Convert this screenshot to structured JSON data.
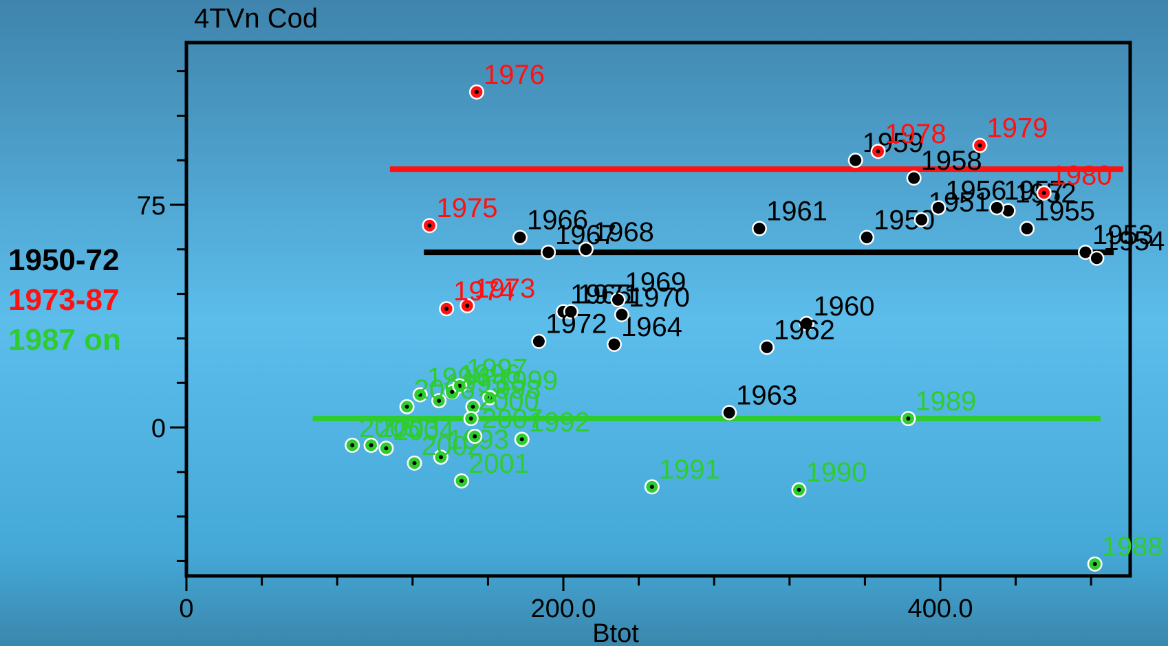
{
  "chart_data": {
    "type": "scatter",
    "title": "4TVn Cod",
    "xlabel": "Btot",
    "ylabel": "",
    "xlim": [
      0,
      500
    ],
    "ylim": [
      -45,
      135
    ],
    "x_tick_labels": [
      "0",
      "200.0",
      "400.0"
    ],
    "y_tick_labels": [
      "0",
      "75"
    ],
    "x_tick_values": [
      0,
      200,
      400
    ],
    "y_tick_values": [
      0,
      75
    ],
    "grid": false,
    "legend_position": "left",
    "series": [
      {
        "name": "1950-72",
        "color": "#000000",
        "mean_line": {
          "y": 59,
          "x_start": 126,
          "x_end": 492
        },
        "points": [
          {
            "year": "1950",
            "x": 361,
            "y": 64
          },
          {
            "year": "1951",
            "x": 390,
            "y": 70
          },
          {
            "year": "1952",
            "x": 436,
            "y": 73
          },
          {
            "year": "1953",
            "x": 477,
            "y": 59
          },
          {
            "year": "1954",
            "x": 483,
            "y": 57
          },
          {
            "year": "1955",
            "x": 446,
            "y": 67
          },
          {
            "year": "1956",
            "x": 399,
            "y": 74
          },
          {
            "year": "1957",
            "x": 430,
            "y": 74
          },
          {
            "year": "1958",
            "x": 386,
            "y": 84
          },
          {
            "year": "1959",
            "x": 355,
            "y": 90
          },
          {
            "year": "1960",
            "x": 329,
            "y": 35
          },
          {
            "year": "1961",
            "x": 304,
            "y": 67
          },
          {
            "year": "1962",
            "x": 308,
            "y": 27
          },
          {
            "year": "1963",
            "x": 288,
            "y": 5
          },
          {
            "year": "1964",
            "x": 227,
            "y": 28
          },
          {
            "year": "1965",
            "x": 200,
            "y": 39
          },
          {
            "year": "1966",
            "x": 177,
            "y": 64
          },
          {
            "year": "1967",
            "x": 192,
            "y": 59
          },
          {
            "year": "1968",
            "x": 212,
            "y": 60
          },
          {
            "year": "1969",
            "x": 229,
            "y": 43
          },
          {
            "year": "1970",
            "x": 231,
            "y": 38
          },
          {
            "year": "1971",
            "x": 204,
            "y": 39
          },
          {
            "year": "1972",
            "x": 187,
            "y": 29
          }
        ]
      },
      {
        "name": "1973-87",
        "color": "#ff1111",
        "mean_line": {
          "y": 87,
          "x_start": 108,
          "x_end": 497
        },
        "points": [
          {
            "year": "1973",
            "x": 149,
            "y": 41
          },
          {
            "year": "1974",
            "x": 138,
            "y": 40
          },
          {
            "year": "1975",
            "x": 129,
            "y": 68
          },
          {
            "year": "1976",
            "x": 154,
            "y": 113
          },
          {
            "year": "1978",
            "x": 367,
            "y": 93
          },
          {
            "year": "1979",
            "x": 421,
            "y": 95
          },
          {
            "year": "1980",
            "x": 455,
            "y": 79
          }
        ]
      },
      {
        "name": "1987 on",
        "color": "#2fcc2f",
        "mean_line": {
          "y": 3,
          "x_start": 67,
          "x_end": 485
        },
        "points": [
          {
            "year": "1988",
            "x": 482,
            "y": -46
          },
          {
            "year": "1989",
            "x": 383,
            "y": 3
          },
          {
            "year": "1990",
            "x": 325,
            "y": -21
          },
          {
            "year": "1991",
            "x": 247,
            "y": -20
          },
          {
            "year": "1992",
            "x": 178,
            "y": -4
          },
          {
            "year": "1993",
            "x": 135,
            "y": -10
          },
          {
            "year": "1994",
            "x": 124,
            "y": 11
          },
          {
            "year": "1995",
            "x": 134,
            "y": 9
          },
          {
            "year": "1996",
            "x": 141,
            "y": 12
          },
          {
            "year": "1997",
            "x": 145,
            "y": 14
          },
          {
            "year": "1998",
            "x": 152,
            "y": 7
          },
          {
            "year": "1999",
            "x": 161,
            "y": 10
          },
          {
            "year": "2000",
            "x": 151,
            "y": 3
          },
          {
            "year": "2001",
            "x": 146,
            "y": -18
          },
          {
            "year": "2002",
            "x": 121,
            "y": -12
          },
          {
            "year": "2003",
            "x": 98,
            "y": -6
          },
          {
            "year": "2004",
            "x": 106,
            "y": -7
          },
          {
            "year": "2005",
            "x": 88,
            "y": -6
          },
          {
            "year": "2006",
            "x": 117,
            "y": 7
          },
          {
            "year": "2007",
            "x": 153,
            "y": -3
          }
        ]
      }
    ]
  },
  "legend": {
    "items": [
      {
        "label": "1950-72",
        "color": "#000000"
      },
      {
        "label": "1973-87",
        "color": "#ff1111"
      },
      {
        "label": "1987 on",
        "color": "#2fcc2f"
      }
    ]
  }
}
